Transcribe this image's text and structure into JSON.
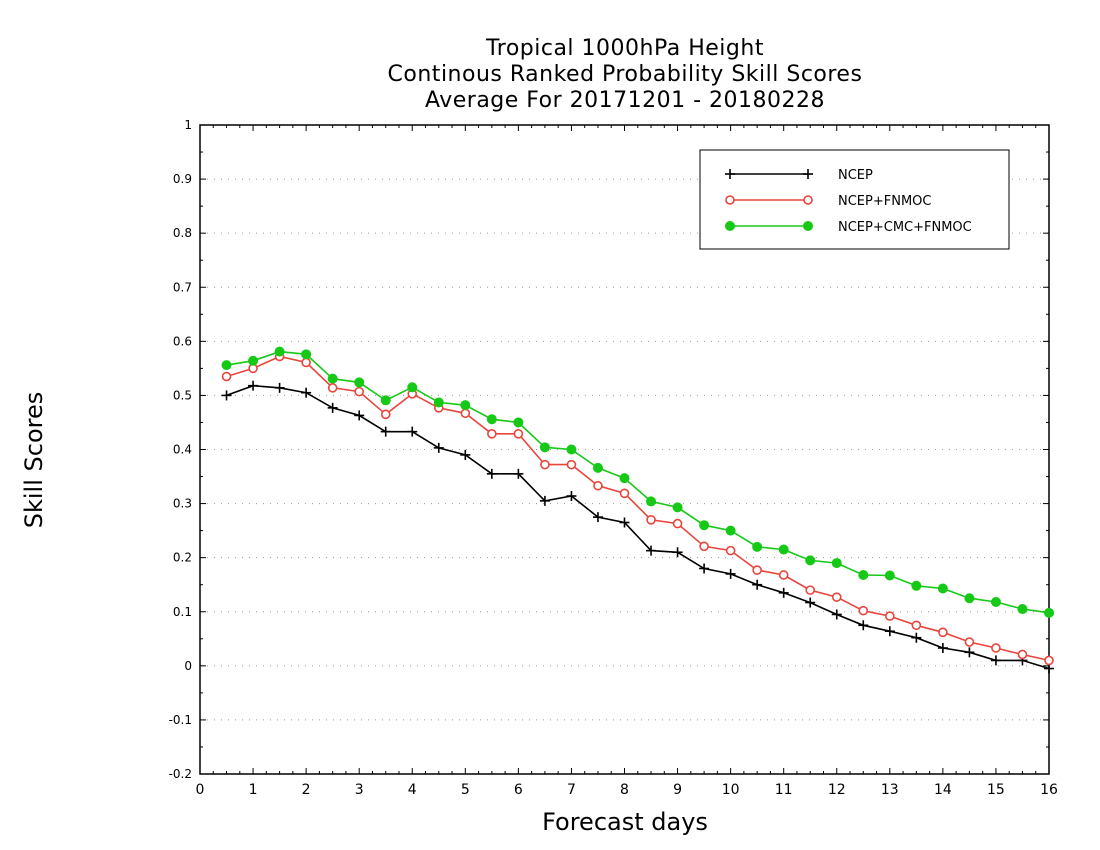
{
  "chart_data": {
    "type": "line",
    "title": [
      "Tropical 1000hPa Height",
      "Continous Ranked Probability Skill Scores",
      "Average For 20171201 - 20180228"
    ],
    "xlabel": "Forecast days",
    "ylabel": "Skill Scores",
    "xlim": [
      0,
      16
    ],
    "ylim": [
      -0.2,
      1
    ],
    "x_ticks": [
      "0",
      "1",
      "2",
      "3",
      "4",
      "5",
      "6",
      "7",
      "8",
      "9",
      "10",
      "11",
      "12",
      "13",
      "14",
      "15",
      "16"
    ],
    "y_ticks": [
      "-0.2",
      "-0.1",
      "0",
      "0.1",
      "0.2",
      "0.3",
      "0.4",
      "0.5",
      "0.6",
      "0.7",
      "0.8",
      "0.9",
      "1"
    ],
    "grid": "horizontal dotted",
    "legend_position": "top-right",
    "x": [
      0.5,
      1.0,
      1.5,
      2.0,
      2.5,
      3.0,
      3.5,
      4.0,
      4.5,
      5.0,
      5.5,
      6.0,
      6.5,
      7.0,
      7.5,
      8.0,
      8.5,
      9.0,
      9.5,
      10.0,
      10.5,
      11.0,
      11.5,
      12.0,
      12.5,
      13.0,
      13.5,
      14.0,
      14.5,
      15.0,
      15.5,
      16.0
    ],
    "series": [
      {
        "name": "NCEP",
        "color": "#000000",
        "marker": "plus",
        "values": [
          0.5,
          0.518,
          0.514,
          0.505,
          0.477,
          0.463,
          0.433,
          0.433,
          0.403,
          0.39,
          0.355,
          0.355,
          0.305,
          0.314,
          0.275,
          0.265,
          0.213,
          0.21,
          0.18,
          0.17,
          0.15,
          0.135,
          0.117,
          0.095,
          0.075,
          0.064,
          0.052,
          0.033,
          0.025,
          0.01,
          0.01,
          -0.005
        ]
      },
      {
        "name": "NCEP+FNMOC",
        "color": "#e8453c",
        "marker": "open-circle",
        "values": [
          0.535,
          0.55,
          0.572,
          0.561,
          0.514,
          0.507,
          0.465,
          0.503,
          0.477,
          0.467,
          0.429,
          0.429,
          0.372,
          0.372,
          0.333,
          0.319,
          0.27,
          0.263,
          0.221,
          0.213,
          0.177,
          0.168,
          0.14,
          0.127,
          0.102,
          0.092,
          0.075,
          0.062,
          0.044,
          0.033,
          0.021,
          0.01
        ]
      },
      {
        "name": "NCEP+CMC+FNMOC",
        "color": "#16c916",
        "marker": "filled-circle",
        "values": [
          0.556,
          0.564,
          0.581,
          0.576,
          0.531,
          0.524,
          0.491,
          0.515,
          0.487,
          0.482,
          0.456,
          0.45,
          0.404,
          0.4,
          0.366,
          0.347,
          0.304,
          0.293,
          0.26,
          0.25,
          0.22,
          0.215,
          0.195,
          0.19,
          0.168,
          0.167,
          0.148,
          0.143,
          0.125,
          0.118,
          0.105,
          0.098
        ]
      }
    ]
  }
}
